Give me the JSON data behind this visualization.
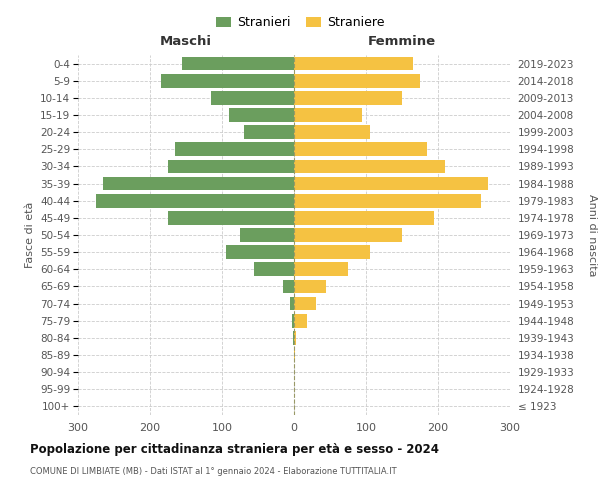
{
  "age_groups": [
    "100+",
    "95-99",
    "90-94",
    "85-89",
    "80-84",
    "75-79",
    "70-74",
    "65-69",
    "60-64",
    "55-59",
    "50-54",
    "45-49",
    "40-44",
    "35-39",
    "30-34",
    "25-29",
    "20-24",
    "15-19",
    "10-14",
    "5-9",
    "0-4"
  ],
  "birth_years": [
    "≤ 1923",
    "1924-1928",
    "1929-1933",
    "1934-1938",
    "1939-1943",
    "1944-1948",
    "1949-1953",
    "1954-1958",
    "1959-1963",
    "1964-1968",
    "1969-1973",
    "1974-1978",
    "1979-1983",
    "1984-1988",
    "1989-1993",
    "1994-1998",
    "1999-2003",
    "2004-2008",
    "2009-2013",
    "2014-2018",
    "2019-2023"
  ],
  "maschi": [
    0,
    0,
    0,
    0,
    2,
    3,
    6,
    15,
    55,
    95,
    75,
    175,
    275,
    265,
    175,
    165,
    70,
    90,
    115,
    185,
    155
  ],
  "femmine": [
    0,
    0,
    0,
    2,
    3,
    18,
    30,
    45,
    75,
    105,
    150,
    195,
    260,
    270,
    210,
    185,
    105,
    95,
    150,
    175,
    165
  ],
  "male_color": "#6b9e5e",
  "female_color": "#f5c242",
  "bar_height": 0.8,
  "xlim": 300,
  "title": "Popolazione per cittadinanza straniera per età e sesso - 2024",
  "subtitle": "COMUNE DI LIMBIATE (MB) - Dati ISTAT al 1° gennaio 2024 - Elaborazione TUTTITALIA.IT",
  "ylabel_left": "Fasce di età",
  "ylabel_right": "Anni di nascita",
  "header_maschi": "Maschi",
  "header_femmine": "Femmine",
  "legend_maschi": "Stranieri",
  "legend_femmine": "Straniere",
  "bg_color": "#ffffff",
  "grid_color": "#cccccc"
}
